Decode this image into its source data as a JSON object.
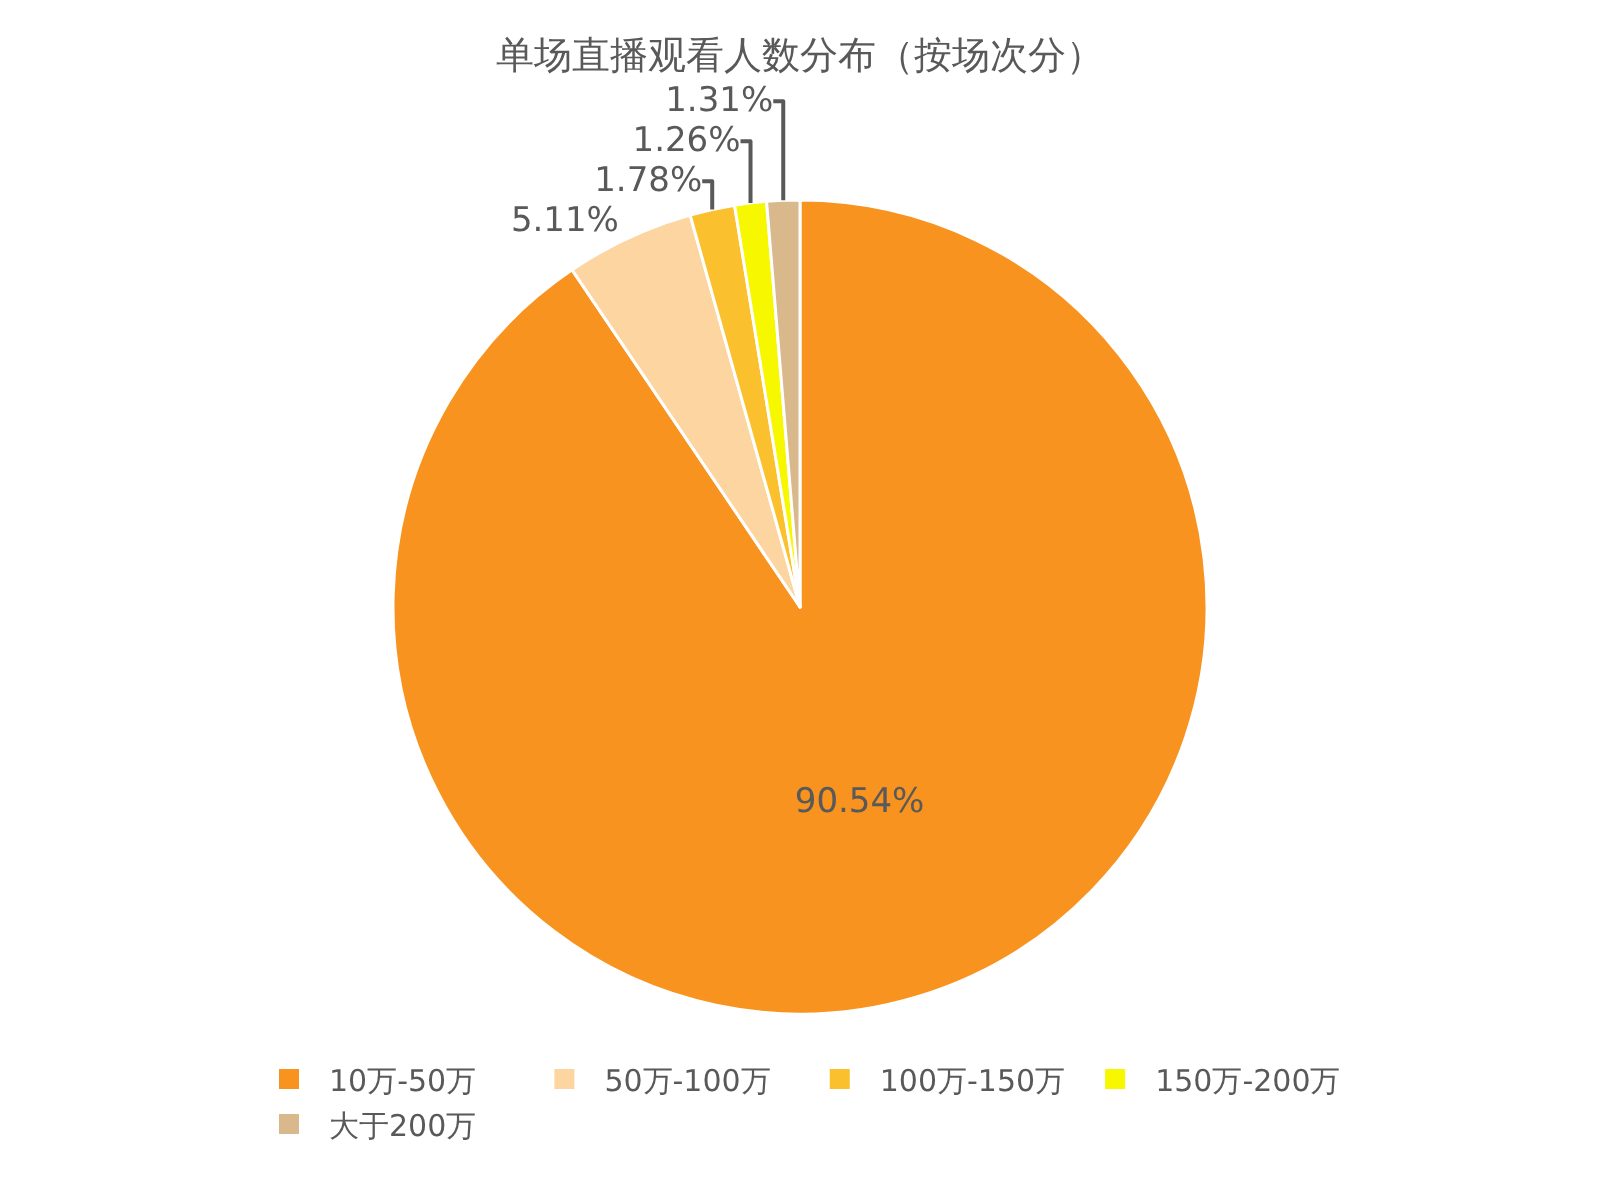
{
  "chart_data": {
    "type": "pie",
    "title": "单场直播观看人数分布（按场次分）",
    "categories": [
      "10万-50万",
      "50万-100万",
      "100万-150万",
      "150万-200万",
      "大于200万"
    ],
    "values": [
      90.54,
      5.11,
      1.78,
      1.26,
      1.31
    ],
    "colors": [
      "#f7931e",
      "#fcd5a0",
      "#fbc02d",
      "#f7f700",
      "#d9b88c"
    ],
    "value_labels": [
      "90.54%",
      "5.11%",
      "1.78%",
      "1.26%",
      "1.31%"
    ],
    "legend": "bottom"
  }
}
